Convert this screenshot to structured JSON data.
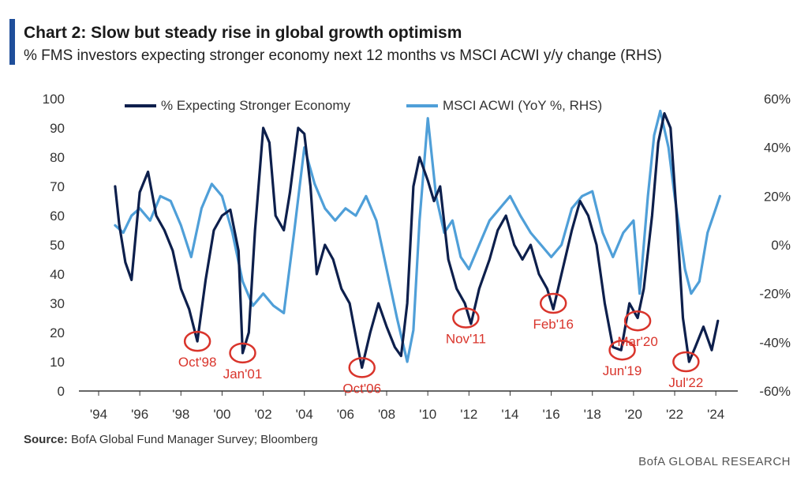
{
  "title": "Chart 2: Slow but steady rise in global growth optimism",
  "subtitle": "% FMS investors expecting stronger economy next 12 months vs MSCI ACWI y/y change (RHS)",
  "source_label": "Source:",
  "source_text": " BofA Global Fund Manager Survey; Bloomberg",
  "brand": "BofA GLOBAL RESEARCH",
  "colors": {
    "fms": "#0d1f4c",
    "acwi": "#4f9fd8",
    "annotation": "#d9342b",
    "accent": "#1f4e9a"
  },
  "chart_data": {
    "type": "line",
    "title": "Chart 2: Slow but steady rise in global growth optimism",
    "x_ticks": [
      "'94",
      "'96",
      "'98",
      "'00",
      "'02",
      "'04",
      "'06",
      "'08",
      "'10",
      "'12",
      "'14",
      "'16",
      "'18",
      "'20",
      "'22",
      "'24"
    ],
    "x_tick_years": [
      1994,
      1996,
      1998,
      2000,
      2002,
      2004,
      2006,
      2008,
      2010,
      2012,
      2014,
      2016,
      2018,
      2020,
      2022,
      2024
    ],
    "xlim": [
      1994,
      2024.3
    ],
    "y_left": {
      "ticks": [
        0,
        10,
        20,
        30,
        40,
        50,
        60,
        70,
        80,
        90,
        100
      ],
      "labels": [
        "0",
        "10",
        "20",
        "30",
        "40",
        "50",
        "60",
        "70",
        "80",
        "90",
        "100"
      ],
      "lim": [
        0,
        100
      ]
    },
    "y_right": {
      "ticks": [
        -60,
        -40,
        -20,
        0,
        20,
        40,
        60
      ],
      "labels": [
        "-60%",
        "-40%",
        "-20%",
        "0%",
        "20%",
        "40%",
        "60%"
      ],
      "lim": [
        -60,
        60
      ]
    },
    "series": [
      {
        "name": "% Expecting Stronger Economy",
        "axis": "left",
        "x": [
          1994.8,
          1995.0,
          1995.3,
          1995.6,
          1996.0,
          1996.4,
          1996.8,
          1997.2,
          1997.6,
          1998.0,
          1998.4,
          1998.8,
          1999.2,
          1999.6,
          2000.0,
          2000.4,
          2000.8,
          2001.0,
          2001.3,
          2001.6,
          2002.0,
          2002.3,
          2002.6,
          2003.0,
          2003.3,
          2003.7,
          2004.0,
          2004.3,
          2004.6,
          2005.0,
          2005.4,
          2005.8,
          2006.2,
          2006.6,
          2006.8,
          2007.2,
          2007.6,
          2008.0,
          2008.4,
          2008.7,
          2009.0,
          2009.3,
          2009.6,
          2010.0,
          2010.3,
          2010.6,
          2011.0,
          2011.4,
          2011.8,
          2012.1,
          2012.5,
          2013.0,
          2013.4,
          2013.8,
          2014.2,
          2014.6,
          2015.0,
          2015.4,
          2015.8,
          2016.1,
          2016.5,
          2017.0,
          2017.4,
          2017.8,
          2018.2,
          2018.6,
          2019.0,
          2019.4,
          2019.8,
          2020.2,
          2020.5,
          2020.9,
          2021.2,
          2021.5,
          2021.8,
          2022.1,
          2022.4,
          2022.7,
          2023.0,
          2023.4,
          2023.8,
          2024.1
        ],
        "values": [
          70,
          57,
          44,
          38,
          68,
          75,
          60,
          55,
          48,
          35,
          28,
          17,
          38,
          55,
          60,
          62,
          48,
          13,
          20,
          55,
          90,
          85,
          60,
          55,
          68,
          90,
          88,
          70,
          40,
          50,
          45,
          35,
          30,
          15,
          8,
          20,
          30,
          22,
          15,
          12,
          30,
          70,
          80,
          72,
          65,
          70,
          45,
          35,
          30,
          23,
          35,
          45,
          55,
          60,
          50,
          45,
          50,
          40,
          35,
          28,
          40,
          55,
          65,
          60,
          50,
          30,
          15,
          14,
          30,
          25,
          35,
          60,
          85,
          95,
          90,
          60,
          25,
          10,
          15,
          22,
          14,
          24
        ]
      },
      {
        "name": "MSCI ACWI (YoY %, RHS)",
        "axis": "right",
        "x": [
          1994.8,
          1995.2,
          1995.6,
          1996.0,
          1996.5,
          1997.0,
          1997.5,
          1998.0,
          1998.5,
          1999.0,
          1999.5,
          2000.0,
          2000.5,
          2001.0,
          2001.5,
          2002.0,
          2002.5,
          2003.0,
          2003.5,
          2004.0,
          2004.5,
          2005.0,
          2005.5,
          2006.0,
          2006.5,
          2007.0,
          2007.5,
          2008.0,
          2008.5,
          2009.0,
          2009.3,
          2009.6,
          2010.0,
          2010.4,
          2010.8,
          2011.2,
          2011.6,
          2012.0,
          2012.5,
          2013.0,
          2013.5,
          2014.0,
          2014.5,
          2015.0,
          2015.5,
          2016.0,
          2016.5,
          2017.0,
          2017.5,
          2018.0,
          2018.5,
          2019.0,
          2019.5,
          2020.0,
          2020.3,
          2020.7,
          2021.0,
          2021.3,
          2021.7,
          2022.0,
          2022.5,
          2022.8,
          2023.2,
          2023.6,
          2024.0,
          2024.2
        ],
        "values": [
          8,
          5,
          12,
          15,
          10,
          20,
          18,
          8,
          -5,
          15,
          25,
          20,
          5,
          -15,
          -25,
          -20,
          -25,
          -28,
          5,
          40,
          25,
          15,
          10,
          15,
          12,
          20,
          10,
          -10,
          -30,
          -48,
          -35,
          10,
          52,
          20,
          5,
          10,
          -5,
          -10,
          0,
          10,
          15,
          20,
          12,
          5,
          0,
          -5,
          0,
          15,
          20,
          22,
          5,
          -5,
          5,
          10,
          -20,
          20,
          45,
          55,
          40,
          20,
          -10,
          -20,
          -15,
          5,
          15,
          20
        ]
      }
    ],
    "annotations": [
      {
        "label": "Oct'98",
        "x": 1998.8,
        "y": 17
      },
      {
        "label": "Jan'01",
        "x": 2001.0,
        "y": 13
      },
      {
        "label": "Oct'06",
        "x": 2006.8,
        "y": 8
      },
      {
        "label": "Nov'11",
        "x": 2011.85,
        "y": 25
      },
      {
        "label": "Feb'16",
        "x": 2016.1,
        "y": 30
      },
      {
        "label": "Jun'19",
        "x": 2019.45,
        "y": 14
      },
      {
        "label": "Mar'20",
        "x": 2020.2,
        "y": 24
      },
      {
        "label": "Jul'22",
        "x": 2022.55,
        "y": 10
      }
    ]
  }
}
